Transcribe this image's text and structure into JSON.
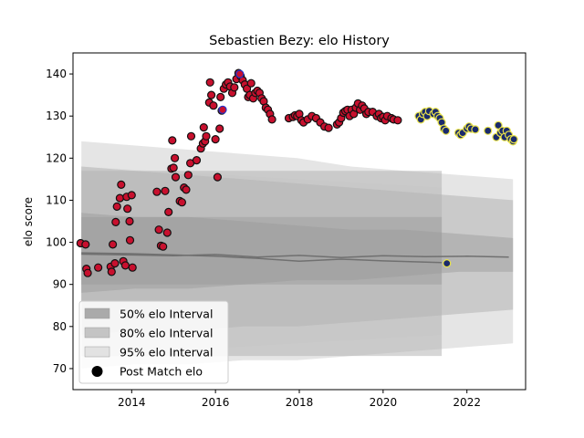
{
  "chart_data": {
    "type": "scatter",
    "title": "Sebastien Bezy: elo History",
    "xlabel": "",
    "ylabel": "elo score",
    "xlim": [
      2012.6,
      2023.4
    ],
    "ylim": [
      65,
      145
    ],
    "xticks": [
      2014,
      2016,
      2018,
      2020,
      2022
    ],
    "xtick_labels": [
      "2014",
      "2016",
      "2018",
      "2020",
      "2022"
    ],
    "yticks": [
      70,
      80,
      90,
      100,
      110,
      120,
      130,
      140
    ],
    "ytick_labels": [
      "70",
      "80",
      "90",
      "100",
      "110",
      "120",
      "130",
      "140"
    ],
    "grid": false,
    "legend_position": "lower-left",
    "legend": [
      {
        "label": "50% elo Interval",
        "kind": "patch",
        "color": "#aaaaaa"
      },
      {
        "label": "80% elo Interval",
        "kind": "patch",
        "color": "#c4c4c4"
      },
      {
        "label": "95% elo Interval",
        "kind": "patch",
        "color": "#e2e2e2"
      },
      {
        "label": "Post Match elo",
        "kind": "marker",
        "color": "#000000"
      }
    ],
    "colors": {
      "red_marker": "#c8102e",
      "yellow_edge": "#e8e24a",
      "navy_fill": "#1a2a6c",
      "median_line": "#707070",
      "band50": "#9a9a9a",
      "band80": "#b5b5b5",
      "band95": "#dcdcdc"
    },
    "bands": [
      {
        "name": "95% elo Interval",
        "segments": [
          {
            "x0": 2012.8,
            "x1": 2023.1,
            "upper": [
              124,
              123,
              122,
              121,
              120,
              118,
              117,
              116,
              115
            ],
            "lower": [
              70,
              71,
              71,
              72,
              72,
              73,
              74,
              75,
              76
            ]
          },
          {
            "x0": 2012.8,
            "x1": 2021.4,
            "upper": [
              118,
              117,
              116,
              115,
              114,
              113
            ],
            "lower": [
              73,
              74,
              75,
              76,
              77,
              78
            ]
          }
        ]
      },
      {
        "name": "80% elo Interval",
        "segments": [
          {
            "x0": 2012.8,
            "x1": 2023.1,
            "upper": [
              118,
              117,
              116,
              115,
              114,
              113,
              112,
              111,
              110
            ],
            "lower": [
              78,
              79,
              79,
              80,
              80,
              81,
              82,
              83,
              84
            ]
          },
          {
            "x0": 2012.8,
            "x1": 2021.4,
            "upper": [
              117,
              117,
              117,
              117,
              117,
              117
            ],
            "lower": [
              73,
              73,
              73,
              73,
              73,
              73
            ]
          }
        ]
      },
      {
        "name": "50% elo Interval",
        "segments": [
          {
            "x0": 2012.8,
            "x1": 2023.1,
            "upper": [
              107,
              106,
              106,
              105,
              104,
              103,
              103,
              102,
              101
            ],
            "lower": [
              88,
              89,
              89,
              90,
              91,
              91,
              92,
              93,
              93
            ]
          },
          {
            "x0": 2012.8,
            "x1": 2021.4,
            "upper": [
              106,
              106,
              106,
              106,
              106,
              106
            ],
            "lower": [
              90,
              90,
              90,
              90,
              90,
              90
            ]
          }
        ]
      }
    ],
    "median_lines": [
      {
        "x": [
          2012.8,
          2014,
          2015,
          2016,
          2017,
          2018,
          2019,
          2020,
          2021,
          2022,
          2023.0
        ],
        "y": [
          97.2,
          97.0,
          96.8,
          97.1,
          96.5,
          96.9,
          96.4,
          96.8,
          96.6,
          96.7,
          96.5
        ]
      },
      {
        "x": [
          2012.8,
          2014,
          2015,
          2016,
          2017,
          2018,
          2019,
          2020,
          2021.4
        ],
        "y": [
          97.5,
          97.3,
          97.0,
          96.7,
          96.2,
          95.5,
          96.0,
          95.6,
          95.2
        ]
      }
    ],
    "series": [
      {
        "name": "Post Match elo",
        "style": "red",
        "points": [
          [
            2012.78,
            99.8
          ],
          [
            2012.9,
            99.5
          ],
          [
            2012.92,
            93.7
          ],
          [
            2012.95,
            92.7
          ],
          [
            2013.2,
            94.0
          ],
          [
            2013.5,
            94.2
          ],
          [
            2013.52,
            93.0
          ],
          [
            2013.55,
            99.5
          ],
          [
            2013.6,
            95.0
          ],
          [
            2013.62,
            104.8
          ],
          [
            2013.65,
            108.5
          ],
          [
            2013.72,
            110.5
          ],
          [
            2013.75,
            113.7
          ],
          [
            2013.8,
            95.5
          ],
          [
            2013.85,
            94.5
          ],
          [
            2013.88,
            110.8
          ],
          [
            2013.9,
            108.0
          ],
          [
            2013.95,
            105.0
          ],
          [
            2013.96,
            100.5
          ],
          [
            2014.0,
            111.2
          ],
          [
            2014.02,
            94.0
          ],
          [
            2014.6,
            112.0
          ],
          [
            2014.65,
            103.0
          ],
          [
            2014.7,
            99.2
          ],
          [
            2014.75,
            99.0
          ],
          [
            2014.8,
            112.2
          ],
          [
            2014.85,
            102.3
          ],
          [
            2014.88,
            107.2
          ],
          [
            2014.95,
            117.5
          ],
          [
            2014.97,
            124.2
          ],
          [
            2015.0,
            117.7
          ],
          [
            2015.03,
            120.0
          ],
          [
            2015.05,
            115.5
          ],
          [
            2015.15,
            109.8
          ],
          [
            2015.2,
            109.5
          ],
          [
            2015.25,
            113.0
          ],
          [
            2015.3,
            112.5
          ],
          [
            2015.35,
            116.0
          ],
          [
            2015.4,
            118.8
          ],
          [
            2015.42,
            125.2
          ],
          [
            2015.55,
            119.5
          ],
          [
            2015.65,
            122.3
          ],
          [
            2015.7,
            123.5
          ],
          [
            2015.72,
            127.3
          ],
          [
            2015.75,
            124.0
          ],
          [
            2015.78,
            125.2
          ],
          [
            2015.85,
            133.2
          ],
          [
            2015.87,
            138.0
          ],
          [
            2015.9,
            135.0
          ],
          [
            2015.95,
            132.5
          ],
          [
            2016.0,
            124.5
          ],
          [
            2016.05,
            115.5
          ],
          [
            2016.1,
            127.0
          ],
          [
            2016.12,
            134.5
          ],
          [
            2016.15,
            131.3
          ],
          [
            2016.2,
            136.5
          ],
          [
            2016.25,
            137.5
          ],
          [
            2016.3,
            138.0
          ],
          [
            2016.35,
            137.0
          ],
          [
            2016.4,
            135.5
          ],
          [
            2016.45,
            136.8
          ],
          [
            2016.5,
            138.8
          ],
          [
            2016.55,
            140.2
          ],
          [
            2016.6,
            139.5
          ],
          [
            2016.65,
            138.5
          ],
          [
            2016.7,
            137.5
          ],
          [
            2016.75,
            136.5
          ],
          [
            2016.78,
            134.5
          ],
          [
            2016.82,
            135.0
          ],
          [
            2016.85,
            137.8
          ],
          [
            2016.9,
            134.2
          ],
          [
            2016.95,
            135.5
          ],
          [
            2017.0,
            136.0
          ],
          [
            2017.05,
            135.5
          ],
          [
            2017.1,
            134.2
          ],
          [
            2017.15,
            133.5
          ],
          [
            2017.2,
            132.0
          ],
          [
            2017.25,
            131.5
          ],
          [
            2017.3,
            130.5
          ],
          [
            2017.35,
            129.2
          ],
          [
            2017.75,
            129.5
          ],
          [
            2017.85,
            129.8
          ],
          [
            2017.9,
            130.2
          ],
          [
            2017.95,
            130.0
          ],
          [
            2018.0,
            130.5
          ],
          [
            2018.05,
            129.0
          ],
          [
            2018.1,
            128.5
          ],
          [
            2018.2,
            129.2
          ],
          [
            2018.3,
            130.0
          ],
          [
            2018.4,
            129.5
          ],
          [
            2018.5,
            128.5
          ],
          [
            2018.6,
            127.5
          ],
          [
            2018.7,
            127.2
          ],
          [
            2018.9,
            128.0
          ],
          [
            2018.95,
            128.5
          ],
          [
            2019.0,
            129.5
          ],
          [
            2019.05,
            130.8
          ],
          [
            2019.1,
            131.2
          ],
          [
            2019.15,
            131.5
          ],
          [
            2019.2,
            130.0
          ],
          [
            2019.25,
            131.5
          ],
          [
            2019.3,
            130.5
          ],
          [
            2019.35,
            132.0
          ],
          [
            2019.4,
            133.0
          ],
          [
            2019.45,
            131.5
          ],
          [
            2019.5,
            132.5
          ],
          [
            2019.55,
            131.8
          ],
          [
            2019.6,
            130.5
          ],
          [
            2019.65,
            131.0
          ],
          [
            2019.75,
            131.0
          ],
          [
            2019.85,
            130.0
          ],
          [
            2019.9,
            130.5
          ],
          [
            2019.95,
            129.5
          ],
          [
            2020.0,
            129.8
          ],
          [
            2020.05,
            129.0
          ],
          [
            2020.1,
            130.0
          ],
          [
            2020.2,
            129.5
          ],
          [
            2020.25,
            129.2
          ],
          [
            2020.35,
            129.0
          ]
        ]
      },
      {
        "name": "Post Match elo",
        "style": "navy",
        "points": [
          [
            2020.85,
            130.0
          ],
          [
            2020.9,
            129.2
          ],
          [
            2020.95,
            130.5
          ],
          [
            2021.0,
            131.0
          ],
          [
            2021.05,
            130.0
          ],
          [
            2021.1,
            131.2
          ],
          [
            2021.2,
            130.5
          ],
          [
            2021.25,
            131.0
          ],
          [
            2021.3,
            130.0
          ],
          [
            2021.35,
            129.5
          ],
          [
            2021.4,
            128.5
          ],
          [
            2021.45,
            127.0
          ],
          [
            2021.5,
            126.5
          ],
          [
            2021.52,
            95.0
          ],
          [
            2021.8,
            126.0
          ],
          [
            2021.85,
            125.5
          ],
          [
            2021.9,
            126.0
          ],
          [
            2022.0,
            127.0
          ],
          [
            2022.05,
            127.5
          ],
          [
            2022.1,
            127.0
          ],
          [
            2022.2,
            126.8
          ],
          [
            2022.5,
            126.5
          ],
          [
            2022.7,
            125.0
          ],
          [
            2022.75,
            127.8
          ],
          [
            2022.8,
            126.0
          ],
          [
            2022.85,
            126.5
          ],
          [
            2022.9,
            125.0
          ],
          [
            2022.95,
            126.5
          ],
          [
            2023.0,
            125.5
          ],
          [
            2023.05,
            124.5
          ],
          [
            2023.1,
            124.0
          ],
          [
            2023.12,
            124.5
          ]
        ]
      },
      {
        "name": "Post Match elo",
        "style": "blue-red",
        "points": [
          [
            2016.17,
            131.5
          ],
          [
            2016.58,
            140.0
          ]
        ]
      }
    ]
  }
}
